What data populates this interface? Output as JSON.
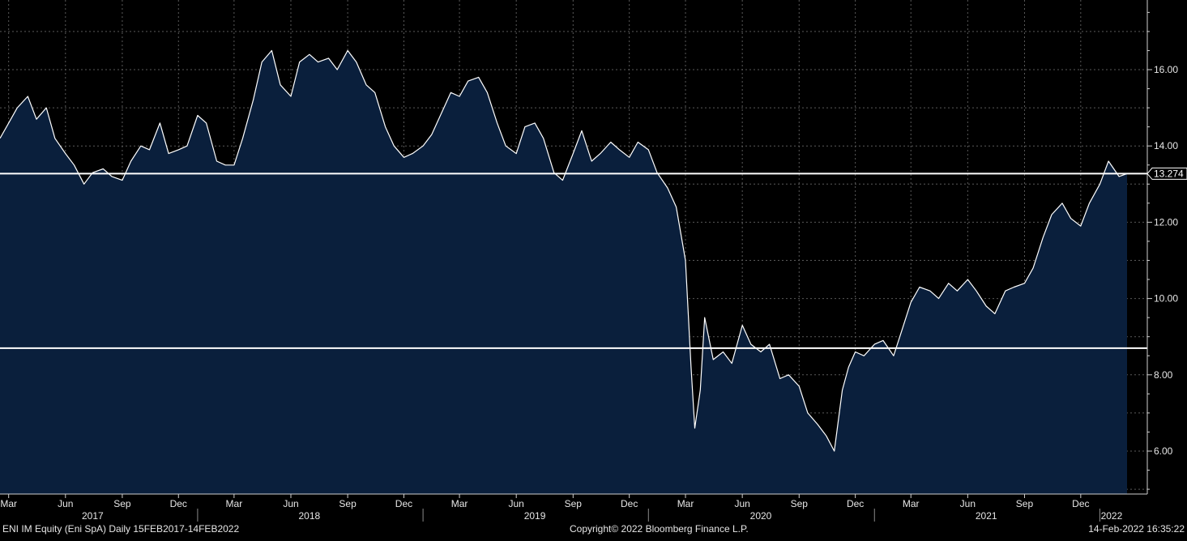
{
  "footer": {
    "left": "ENI IM Equity (Eni SpA)  Daily 15FEB2017-14FEB2022",
    "center": "Copyright© 2022 Bloomberg Finance L.P.",
    "right": "14-Feb-2022 16:35:22"
  },
  "chart_data": {
    "type": "area",
    "security": "ENI IM Equity (Eni SpA)",
    "frequency": "Daily",
    "range": "15FEB2017-14FEB2022",
    "ylim": [
      4.9,
      18.5
    ],
    "y_ticks": [
      6.0,
      8.0,
      10.0,
      12.0,
      14.0,
      16.0
    ],
    "y_tick_labels": [
      "6.00",
      "8.00",
      "10.00",
      "12.00",
      "14.00",
      "16.00"
    ],
    "last_value": 13.274,
    "last_value_label": "13.274",
    "horizontal_lines": [
      13.274,
      8.7
    ],
    "grid": true,
    "colors": {
      "background": "#000000",
      "area_fill": "#0a1f3c",
      "line": "#ffffff",
      "grid": "#5a5a5a"
    },
    "x_month_labels": [
      {
        "date": "2017-03-01",
        "label": "Mar"
      },
      {
        "date": "2017-06-01",
        "label": "Jun"
      },
      {
        "date": "2017-09-01",
        "label": "Sep"
      },
      {
        "date": "2017-12-01",
        "label": "Dec"
      },
      {
        "date": "2018-03-01",
        "label": "Mar"
      },
      {
        "date": "2018-06-01",
        "label": "Jun"
      },
      {
        "date": "2018-09-01",
        "label": "Sep"
      },
      {
        "date": "2018-12-01",
        "label": "Dec"
      },
      {
        "date": "2019-03-01",
        "label": "Mar"
      },
      {
        "date": "2019-06-01",
        "label": "Jun"
      },
      {
        "date": "2019-09-01",
        "label": "Sep"
      },
      {
        "date": "2019-12-01",
        "label": "Dec"
      },
      {
        "date": "2020-03-01",
        "label": "Mar"
      },
      {
        "date": "2020-06-01",
        "label": "Jun"
      },
      {
        "date": "2020-09-01",
        "label": "Sep"
      },
      {
        "date": "2020-12-01",
        "label": "Dec"
      },
      {
        "date": "2021-03-01",
        "label": "Mar"
      },
      {
        "date": "2021-06-01",
        "label": "Jun"
      },
      {
        "date": "2021-09-01",
        "label": "Sep"
      },
      {
        "date": "2021-12-01",
        "label": "Dec"
      }
    ],
    "x_year_labels": [
      {
        "date": "2017-07-15",
        "label": "2017"
      },
      {
        "date": "2018-07-01",
        "label": "2018"
      },
      {
        "date": "2019-07-01",
        "label": "2019"
      },
      {
        "date": "2020-07-01",
        "label": "2020"
      },
      {
        "date": "2021-07-01",
        "label": "2021"
      },
      {
        "date": "2022-01-20",
        "label": "2022"
      }
    ],
    "x_year_boundaries": [
      "2018-01-01",
      "2019-01-01",
      "2020-01-01",
      "2021-01-01",
      "2022-01-01"
    ],
    "series": [
      {
        "values": [
          [
            "2017-02-15",
            14.2
          ],
          [
            "2017-03-01",
            14.6
          ],
          [
            "2017-03-15",
            15.0
          ],
          [
            "2017-04-01",
            15.3
          ],
          [
            "2017-04-15",
            14.7
          ],
          [
            "2017-05-01",
            15.0
          ],
          [
            "2017-05-15",
            14.2
          ],
          [
            "2017-06-01",
            13.8
          ],
          [
            "2017-06-15",
            13.5
          ],
          [
            "2017-07-01",
            13.0
          ],
          [
            "2017-07-15",
            13.3
          ],
          [
            "2017-08-01",
            13.4
          ],
          [
            "2017-08-15",
            13.2
          ],
          [
            "2017-09-01",
            13.1
          ],
          [
            "2017-09-15",
            13.6
          ],
          [
            "2017-10-01",
            14.0
          ],
          [
            "2017-10-15",
            13.9
          ],
          [
            "2017-11-01",
            14.6
          ],
          [
            "2017-11-15",
            13.8
          ],
          [
            "2017-12-01",
            13.9
          ],
          [
            "2017-12-15",
            14.0
          ],
          [
            "2018-01-01",
            14.8
          ],
          [
            "2018-01-15",
            14.6
          ],
          [
            "2018-02-01",
            13.6
          ],
          [
            "2018-02-15",
            13.5
          ],
          [
            "2018-03-01",
            13.5
          ],
          [
            "2018-03-15",
            14.2
          ],
          [
            "2018-04-01",
            15.2
          ],
          [
            "2018-04-15",
            16.2
          ],
          [
            "2018-05-01",
            16.5
          ],
          [
            "2018-05-15",
            15.6
          ],
          [
            "2018-06-01",
            15.3
          ],
          [
            "2018-06-15",
            16.2
          ],
          [
            "2018-07-01",
            16.4
          ],
          [
            "2018-07-15",
            16.2
          ],
          [
            "2018-08-01",
            16.3
          ],
          [
            "2018-08-15",
            16.0
          ],
          [
            "2018-09-01",
            16.5
          ],
          [
            "2018-09-15",
            16.2
          ],
          [
            "2018-10-01",
            15.6
          ],
          [
            "2018-10-15",
            15.4
          ],
          [
            "2018-11-01",
            14.5
          ],
          [
            "2018-11-15",
            14.0
          ],
          [
            "2018-12-01",
            13.7
          ],
          [
            "2018-12-15",
            13.8
          ],
          [
            "2019-01-01",
            14.0
          ],
          [
            "2019-01-15",
            14.3
          ],
          [
            "2019-02-01",
            14.9
          ],
          [
            "2019-02-15",
            15.4
          ],
          [
            "2019-03-01",
            15.3
          ],
          [
            "2019-03-15",
            15.7
          ],
          [
            "2019-04-01",
            15.8
          ],
          [
            "2019-04-15",
            15.4
          ],
          [
            "2019-05-01",
            14.6
          ],
          [
            "2019-05-15",
            14.0
          ],
          [
            "2019-06-01",
            13.8
          ],
          [
            "2019-06-15",
            14.5
          ],
          [
            "2019-07-01",
            14.6
          ],
          [
            "2019-07-15",
            14.2
          ],
          [
            "2019-08-01",
            13.3
          ],
          [
            "2019-08-15",
            13.1
          ],
          [
            "2019-09-01",
            13.8
          ],
          [
            "2019-09-15",
            14.4
          ],
          [
            "2019-10-01",
            13.6
          ],
          [
            "2019-10-15",
            13.8
          ],
          [
            "2019-11-01",
            14.1
          ],
          [
            "2019-11-15",
            13.9
          ],
          [
            "2019-12-01",
            13.7
          ],
          [
            "2019-12-15",
            14.1
          ],
          [
            "2020-01-01",
            13.9
          ],
          [
            "2020-01-15",
            13.3
          ],
          [
            "2020-02-01",
            12.9
          ],
          [
            "2020-02-15",
            12.4
          ],
          [
            "2020-03-01",
            11.0
          ],
          [
            "2020-03-10",
            8.2
          ],
          [
            "2020-03-16",
            6.6
          ],
          [
            "2020-03-25",
            7.6
          ],
          [
            "2020-04-01",
            9.5
          ],
          [
            "2020-04-15",
            8.4
          ],
          [
            "2020-05-01",
            8.6
          ],
          [
            "2020-05-15",
            8.3
          ],
          [
            "2020-06-01",
            9.3
          ],
          [
            "2020-06-15",
            8.8
          ],
          [
            "2020-07-01",
            8.6
          ],
          [
            "2020-07-15",
            8.8
          ],
          [
            "2020-08-01",
            7.9
          ],
          [
            "2020-08-15",
            8.0
          ],
          [
            "2020-09-01",
            7.7
          ],
          [
            "2020-09-15",
            7.0
          ],
          [
            "2020-10-01",
            6.7
          ],
          [
            "2020-10-15",
            6.4
          ],
          [
            "2020-10-28",
            6.0
          ],
          [
            "2020-11-10",
            7.6
          ],
          [
            "2020-11-20",
            8.2
          ],
          [
            "2020-12-01",
            8.6
          ],
          [
            "2020-12-15",
            8.5
          ],
          [
            "2021-01-01",
            8.8
          ],
          [
            "2021-01-15",
            8.9
          ],
          [
            "2021-02-01",
            8.5
          ],
          [
            "2021-02-15",
            9.2
          ],
          [
            "2021-03-01",
            9.9
          ],
          [
            "2021-03-15",
            10.3
          ],
          [
            "2021-04-01",
            10.2
          ],
          [
            "2021-04-15",
            10.0
          ],
          [
            "2021-05-01",
            10.4
          ],
          [
            "2021-05-15",
            10.2
          ],
          [
            "2021-06-01",
            10.5
          ],
          [
            "2021-06-15",
            10.2
          ],
          [
            "2021-07-01",
            9.8
          ],
          [
            "2021-07-15",
            9.6
          ],
          [
            "2021-08-01",
            10.2
          ],
          [
            "2021-08-15",
            10.3
          ],
          [
            "2021-09-01",
            10.4
          ],
          [
            "2021-09-15",
            10.8
          ],
          [
            "2021-10-01",
            11.6
          ],
          [
            "2021-10-15",
            12.2
          ],
          [
            "2021-11-01",
            12.5
          ],
          [
            "2021-11-15",
            12.1
          ],
          [
            "2021-12-01",
            11.9
          ],
          [
            "2021-12-15",
            12.5
          ],
          [
            "2022-01-01",
            13.0
          ],
          [
            "2022-01-15",
            13.6
          ],
          [
            "2022-02-01",
            13.2
          ],
          [
            "2022-02-14",
            13.274
          ]
        ]
      }
    ]
  }
}
